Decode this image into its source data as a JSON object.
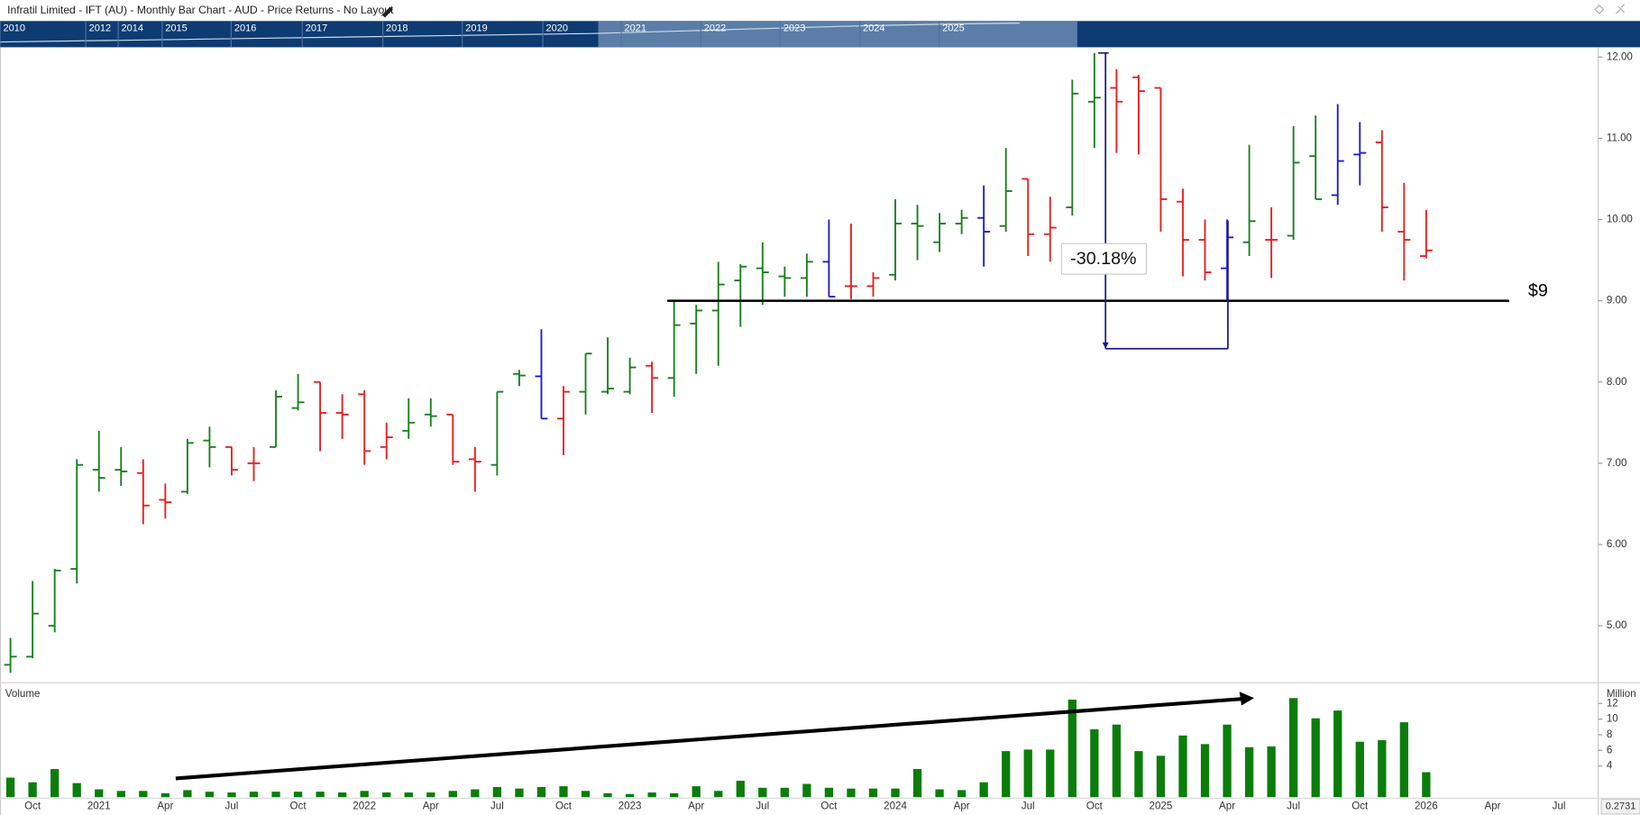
{
  "header": {
    "title": "Infratil Limited - IFT (AU) - Monthly Bar Chart - AUD - Price Returns - No Layout"
  },
  "navigator": {
    "labels": [
      "2010",
      "2012",
      "2014",
      "2015",
      "2016",
      "2017",
      "2018",
      "2019",
      "2020",
      "2021",
      "2022",
      "2023",
      "2024",
      "2025"
    ]
  },
  "chart_data": {
    "type": "ohlc",
    "categories": [
      null,
      "Oct",
      null,
      null,
      "2021",
      null,
      null,
      "Apr",
      null,
      null,
      "Jul",
      null,
      null,
      "Oct",
      null,
      null,
      "2022",
      null,
      null,
      "Apr",
      null,
      null,
      "Jul",
      null,
      null,
      "Oct",
      null,
      null,
      "2023",
      null,
      null,
      "Apr",
      null,
      null,
      "Jul",
      null,
      null,
      "Oct",
      null,
      null,
      "2024",
      null,
      null,
      "Apr",
      null,
      null,
      "Jul",
      null,
      null,
      "Oct",
      null,
      null,
      "2025",
      null,
      null,
      "Apr",
      null,
      null,
      "Jul",
      null,
      null,
      "Oct",
      null,
      null,
      "2026",
      null,
      null,
      "Apr",
      null,
      null,
      "Jul",
      null
    ],
    "open": [
      4.52,
      4.62,
      5.0,
      5.7,
      6.92,
      6.92,
      6.88,
      6.55,
      6.65,
      7.28,
      7.2,
      7.0,
      7.2,
      7.68,
      8.0,
      7.62,
      7.85,
      7.2,
      7.4,
      7.6,
      7.6,
      7.05,
      6.98,
      8.1,
      8.07,
      7.55,
      7.88,
      7.88,
      7.88,
      8.2,
      8.05,
      8.72,
      8.88,
      9.25,
      9.4,
      9.3,
      9.28,
      9.48,
      9.18,
      9.18,
      9.32,
      9.95,
      9.72,
      9.95,
      10.02,
      9.92,
      10.5,
      9.82,
      10.15,
      11.45,
      11.62,
      11.75,
      11.62,
      10.22,
      9.75,
      9.4,
      9.72,
      9.75,
      9.8,
      10.78,
      10.3,
      10.8,
      10.95,
      9.85,
      9.55,
      null,
      null,
      null,
      null,
      null,
      null,
      null
    ],
    "high": [
      4.85,
      5.55,
      5.7,
      7.05,
      7.4,
      7.2,
      7.05,
      6.75,
      7.3,
      7.45,
      7.2,
      7.2,
      7.9,
      8.1,
      8.0,
      7.85,
      7.9,
      7.5,
      7.8,
      7.8,
      7.6,
      7.2,
      7.88,
      8.15,
      8.65,
      7.95,
      8.35,
      8.55,
      8.3,
      8.25,
      9.0,
      8.95,
      9.48,
      9.45,
      9.72,
      9.42,
      9.58,
      10.0,
      9.95,
      9.35,
      10.25,
      10.18,
      10.08,
      10.12,
      10.42,
      10.88,
      10.5,
      10.28,
      11.72,
      12.05,
      11.85,
      11.78,
      11.62,
      10.38,
      10.0,
      10.0,
      10.92,
      10.15,
      11.15,
      11.28,
      11.42,
      11.2,
      11.1,
      10.45,
      10.12,
      null,
      null,
      null,
      null,
      null,
      null,
      null
    ],
    "low": [
      4.42,
      4.6,
      4.92,
      5.52,
      6.65,
      6.72,
      6.25,
      6.32,
      6.62,
      6.95,
      6.85,
      6.78,
      7.2,
      7.65,
      7.15,
      7.3,
      6.98,
      7.05,
      7.3,
      7.45,
      6.98,
      6.65,
      6.85,
      7.95,
      7.55,
      7.1,
      7.6,
      7.85,
      7.85,
      7.62,
      7.82,
      8.1,
      8.2,
      8.68,
      8.95,
      9.05,
      9.05,
      9.05,
      9.02,
      9.05,
      9.25,
      9.5,
      9.6,
      9.82,
      9.42,
      9.85,
      9.55,
      9.48,
      10.05,
      10.88,
      10.82,
      10.8,
      9.85,
      9.3,
      9.25,
      9.0,
      9.55,
      9.28,
      9.75,
      10.25,
      10.18,
      10.42,
      9.85,
      9.25,
      9.52,
      null,
      null,
      null,
      null,
      null,
      null,
      null
    ],
    "close": [
      4.62,
      5.15,
      5.68,
      6.98,
      6.82,
      6.9,
      6.48,
      6.52,
      7.25,
      7.2,
      6.92,
      7.0,
      7.82,
      7.75,
      7.62,
      7.6,
      7.15,
      7.32,
      7.5,
      7.58,
      7.02,
      7.02,
      7.88,
      8.08,
      7.55,
      7.88,
      8.35,
      7.92,
      8.18,
      8.05,
      8.7,
      8.88,
      9.2,
      9.42,
      9.35,
      9.28,
      9.48,
      9.05,
      9.18,
      9.28,
      9.95,
      9.92,
      9.95,
      10.02,
      9.85,
      10.35,
      9.82,
      9.9,
      11.55,
      11.5,
      11.45,
      11.58,
      10.25,
      9.75,
      9.35,
      9.78,
      9.98,
      9.75,
      10.7,
      10.25,
      10.72,
      10.82,
      10.15,
      9.75,
      9.62,
      null,
      null,
      null,
      null,
      null,
      null,
      null
    ],
    "bar_colors": [
      "#17801a",
      "#17801a",
      "#17801a",
      "#17801a",
      "#17801a",
      "#17801a",
      "#ee1c1c",
      "#ee1c1c",
      "#17801a",
      "#17801a",
      "#ee1c1c",
      "#ee1c1c",
      "#17801a",
      "#17801a",
      "#ee1c1c",
      "#ee1c1c",
      "#ee1c1c",
      "#ee1c1c",
      "#17801a",
      "#17801a",
      "#ee1c1c",
      "#ee1c1c",
      "#17801a",
      "#17801a",
      "#1c1cd4",
      "#ee1c1c",
      "#17801a",
      "#17801a",
      "#17801a",
      "#ee1c1c",
      "#17801a",
      "#17801a",
      "#17801a",
      "#17801a",
      "#17801a",
      "#17801a",
      "#17801a",
      "#1c1cd4",
      "#ee1c1c",
      "#ee1c1c",
      "#17801a",
      "#17801a",
      "#17801a",
      "#17801a",
      "#1c1cd4",
      "#17801a",
      "#ee1c1c",
      "#ee1c1c",
      "#17801a",
      "#17801a",
      "#ee1c1c",
      "#ee1c1c",
      "#ee1c1c",
      "#ee1c1c",
      "#ee1c1c",
      "#1c1cd4",
      "#17801a",
      "#ee1c1c",
      "#17801a",
      "#17801a",
      "#1c1cd4",
      "#1c1cd4",
      "#ee1c1c",
      "#ee1c1c",
      "#ee1c1c",
      null,
      null,
      null,
      null,
      null,
      null,
      null
    ],
    "ylim": [
      4.3,
      12.12
    ],
    "yticks": [
      {
        "value": 5,
        "label": "5.00"
      },
      {
        "value": 6,
        "label": "6.00"
      },
      {
        "value": 7,
        "label": "7.00"
      },
      {
        "value": 8,
        "label": "8.00"
      },
      {
        "value": 9,
        "label": "9.00"
      },
      {
        "value": 10,
        "label": "10.00"
      },
      {
        "value": 11,
        "label": "11.00"
      },
      {
        "value": 12,
        "label": "12.00"
      }
    ],
    "hline": {
      "value": 9,
      "label": "$9"
    },
    "measure": {
      "from": 12.05,
      "to": 8.41,
      "label": "-30.18%"
    },
    "volume": {
      "title": "Volume",
      "unit": "Million",
      "color": "#0b7d0b",
      "values": [
        2.5,
        1.9,
        3.6,
        1.8,
        1.0,
        0.8,
        0.8,
        0.5,
        0.9,
        0.7,
        0.6,
        0.7,
        0.7,
        0.7,
        0.7,
        0.6,
        0.8,
        0.6,
        0.6,
        0.6,
        0.8,
        1.0,
        1.3,
        1.1,
        1.3,
        1.4,
        0.8,
        0.5,
        0.4,
        0.6,
        0.5,
        1.4,
        0.8,
        2.1,
        1.2,
        1.2,
        1.7,
        1.2,
        1.1,
        1.1,
        1.1,
        3.6,
        1.0,
        0.9,
        1.9,
        5.9,
        6.1,
        6.1,
        12.5,
        8.7,
        9.3,
        5.9,
        5.3,
        7.9,
        6.8,
        9.3,
        6.4,
        6.5,
        12.7,
        10.1,
        11.1,
        7.1,
        7.3,
        9.6,
        3.2,
        null,
        null,
        null,
        null,
        null,
        null,
        null
      ],
      "ylim": [
        0,
        14
      ],
      "yticks": [
        4,
        6,
        8,
        10,
        12
      ],
      "trend": {
        "from": 2.4,
        "to": 12.7
      },
      "corner_value": 0.2731
    }
  }
}
